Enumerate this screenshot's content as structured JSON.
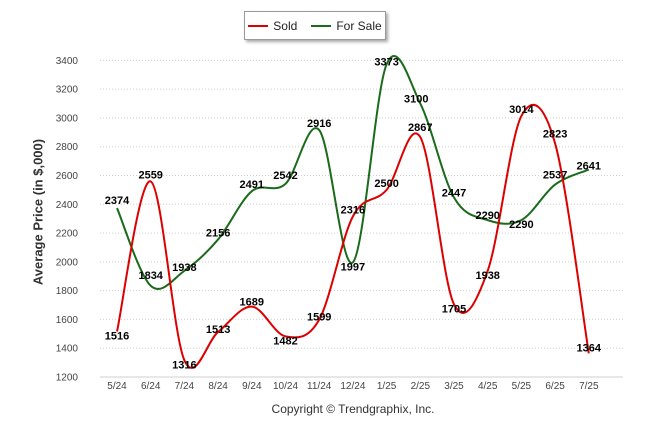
{
  "chart_data": {
    "type": "line",
    "ylabel": "Average Price (in $,000)",
    "xlabel": "",
    "ylim": [
      1200,
      3500
    ],
    "y_ticks": [
      1200,
      1400,
      1600,
      1800,
      2000,
      2200,
      2400,
      2600,
      2800,
      3000,
      3200,
      3400
    ],
    "categories": [
      "5/24",
      "6/24",
      "7/24",
      "8/24",
      "9/24",
      "10/24",
      "11/24",
      "12/24",
      "1/25",
      "2/25",
      "3/25",
      "4/25",
      "5/25",
      "6/25",
      "7/25"
    ],
    "grid": "horizontal dotted",
    "legend": "top-center",
    "series": [
      {
        "name": "Sold",
        "color": "#dd0000",
        "values": [
          1516,
          2559,
          1316,
          1513,
          1689,
          1482,
          1599,
          2316,
          2500,
          2867,
          1705,
          1938,
          3014,
          2823,
          1364
        ]
      },
      {
        "name": "For Sale",
        "color": "#1a6b1a",
        "values": [
          2374,
          1834,
          1938,
          2156,
          2491,
          2542,
          2916,
          1997,
          3373,
          3100,
          2447,
          2290,
          2290,
          2537,
          2641
        ]
      }
    ]
  },
  "legend": {
    "items": [
      {
        "label": "Sold",
        "color": "#dd0000"
      },
      {
        "label": "For Sale",
        "color": "#1a6b1a"
      }
    ]
  },
  "footer": {
    "credit": "Copyright © Trendgraphix, Inc."
  }
}
